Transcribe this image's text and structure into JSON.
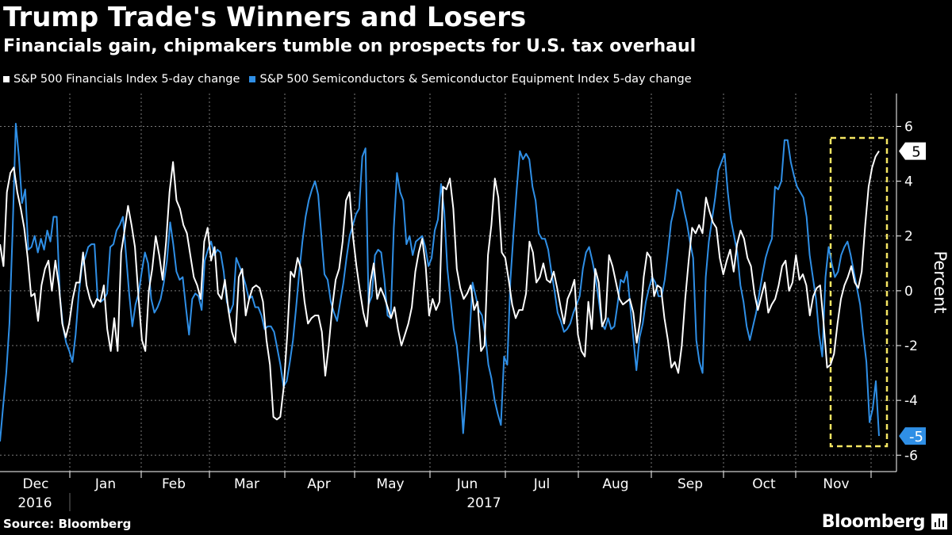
{
  "chart_data": {
    "type": "line",
    "title": "Trump Trade's Winners and Losers",
    "subtitle": "Financials gain, chipmakers tumble on prospects for U.S. tax overhaul",
    "ylabel": "Percent",
    "ylim": [
      -6.6,
      7.2
    ],
    "yticks": [
      -6,
      -4,
      -2,
      0,
      2,
      4,
      6
    ],
    "grid": true,
    "legend_position": "top-left",
    "x_month_labels": [
      "Dec",
      "Jan",
      "Feb",
      "Mar",
      "Apr",
      "May",
      "Jun",
      "Jul",
      "Aug",
      "Sep",
      "Oct",
      "Nov"
    ],
    "x_year_labels": [
      "2016",
      "2017"
    ],
    "series": [
      {
        "name": "S&P 500 Financials Index 5-day change",
        "color": "#ffffff",
        "end_label": "5",
        "values": [
          1.7,
          0.9,
          3.6,
          4.3,
          4.5,
          3.6,
          3.0,
          2.3,
          1.2,
          -0.2,
          -0.1,
          -1.1,
          0.2,
          0.8,
          1.1,
          0.0,
          1.1,
          0.2,
          -1.2,
          -1.7,
          -1.2,
          -0.3,
          0.3,
          0.3,
          1.4,
          0.2,
          -0.3,
          -0.6,
          -0.3,
          -0.4,
          0.2,
          -1.4,
          -2.2,
          -1.0,
          -2.2,
          1.4,
          2.2,
          3.1,
          2.4,
          1.6,
          -0.2,
          -1.8,
          -2.2,
          0.0,
          0.8,
          2.0,
          1.3,
          0.4,
          1.8,
          3.6,
          4.7,
          3.3,
          3.0,
          2.4,
          2.1,
          1.3,
          0.5,
          0.2,
          -0.3,
          1.8,
          2.3,
          1.1,
          1.6,
          -0.1,
          -0.3,
          0.4,
          -0.7,
          -1.5,
          -1.9,
          0.5,
          0.8,
          -0.9,
          -0.3,
          0.1,
          0.2,
          0.1,
          -0.4,
          -1.8,
          -2.7,
          -4.6,
          -4.7,
          -4.6,
          -3.5,
          -1.6,
          0.7,
          0.5,
          1.2,
          0.8,
          -0.4,
          -1.2,
          -1.0,
          -0.9,
          -0.9,
          -1.5,
          -3.1,
          -2.0,
          -0.6,
          0.4,
          0.8,
          1.8,
          3.3,
          3.6,
          2.0,
          0.9,
          0.0,
          -0.8,
          -1.3,
          0.3,
          1.0,
          -0.3,
          0.1,
          -0.2,
          -0.6,
          -1.0,
          -0.6,
          -1.4,
          -2.0,
          -1.6,
          -1.2,
          -0.6,
          0.7,
          1.4,
          1.9,
          0.9,
          -0.9,
          -0.3,
          -0.7,
          -0.4,
          3.8,
          3.7,
          4.1,
          3.0,
          0.8,
          0.1,
          -0.3,
          -0.1,
          0.2,
          -0.7,
          -0.4,
          -2.2,
          -2.0,
          1.3,
          2.4,
          4.1,
          3.4,
          1.4,
          1.2,
          0.4,
          -0.5,
          -1.0,
          -0.7,
          -0.7,
          -0.1,
          1.8,
          1.4,
          0.3,
          0.5,
          1.0,
          0.4,
          0.3,
          0.7,
          0.1,
          -0.6,
          -1.2,
          -0.3,
          0.0,
          0.4,
          -1.6,
          -2.2,
          -2.4,
          -0.4,
          -1.4,
          0.8,
          0.3,
          -1.3,
          -1.0,
          1.3,
          0.9,
          0.3,
          -0.3,
          -0.5,
          -0.4,
          -0.3,
          -0.8,
          -1.9,
          -1.1,
          0.5,
          1.4,
          1.2,
          -0.2,
          0.2,
          0.1,
          -1.0,
          -1.8,
          -2.8,
          -2.6,
          -3.0,
          -2.0,
          -0.3,
          1.1,
          2.3,
          2.1,
          2.4,
          2.1,
          3.4,
          2.9,
          2.5,
          2.3,
          1.2,
          0.6,
          1.1,
          1.5,
          0.7,
          1.7,
          2.2,
          1.9,
          1.2,
          0.9,
          -0.1,
          -0.7,
          -0.2,
          0.3,
          -0.8,
          -0.5,
          -0.3,
          0.2,
          0.9,
          1.1,
          0.0,
          0.3,
          1.3,
          0.4,
          0.6,
          0.2,
          -0.9,
          -0.2,
          0.1,
          0.2,
          -1.2,
          -2.8,
          -2.7,
          -2.3,
          -1.2,
          -0.3,
          0.2,
          0.5,
          0.9,
          0.3,
          0.1,
          0.7,
          2.4,
          3.8,
          4.5,
          4.9,
          5.1
        ]
      },
      {
        "name": "S&P 500 Semiconductors & Semiconductor Equipment Index 5-day change",
        "color": "#2f8fe6",
        "end_label": "-5",
        "values": [
          -5.5,
          -4.2,
          -3.0,
          -1.2,
          2.2,
          6.1,
          4.9,
          3.2,
          3.7,
          1.5,
          1.6,
          2.0,
          1.4,
          1.9,
          1.5,
          2.2,
          1.8,
          2.7,
          2.7,
          -0.2,
          -1.3,
          -1.9,
          -2.2,
          -2.6,
          -1.6,
          -0.1,
          0.9,
          1.2,
          1.6,
          1.7,
          1.7,
          -0.3,
          -0.4,
          -0.3,
          -0.1,
          1.6,
          1.7,
          2.2,
          2.4,
          2.7,
          1.3,
          -0.1,
          -1.3,
          -0.5,
          -0.1,
          0.7,
          1.4,
          1.0,
          -0.3,
          -0.8,
          -0.6,
          -0.3,
          0.3,
          1.1,
          2.5,
          1.7,
          0.7,
          0.4,
          0.5,
          -0.6,
          -1.6,
          -0.3,
          -0.1,
          -0.2,
          -0.7,
          1.1,
          1.5,
          1.8,
          1.3,
          1.5,
          1.4,
          0.7,
          -0.4,
          -0.8,
          -0.5,
          1.2,
          0.9,
          0.6,
          0.2,
          -0.3,
          -0.2,
          -0.6,
          -0.6,
          -0.9,
          -1.4,
          -1.3,
          -1.3,
          -1.5,
          -2.1,
          -2.7,
          -3.5,
          -3.3,
          -2.6,
          -1.8,
          -0.6,
          0.7,
          1.8,
          2.7,
          3.3,
          3.7,
          4.0,
          3.5,
          2.0,
          0.6,
          0.4,
          -0.4,
          -0.8,
          -1.1,
          -0.4,
          0.3,
          1.2,
          2.0,
          2.4,
          2.8,
          3.0,
          4.9,
          5.2,
          -0.5,
          -0.2,
          1.3,
          1.5,
          1.4,
          0.4,
          -0.9,
          -1.0,
          2.3,
          4.3,
          3.6,
          3.3,
          1.7,
          2.0,
          1.3,
          1.8,
          1.9,
          2.0,
          1.6,
          0.9,
          1.2,
          2.2,
          2.6,
          3.9,
          2.9,
          0.8,
          -0.3,
          -1.4,
          -2.0,
          -3.1,
          -5.2,
          -3.6,
          -1.7,
          0.3,
          -0.2,
          -0.7,
          -0.9,
          -1.6,
          -2.7,
          -3.2,
          -4.0,
          -4.5,
          -4.9,
          -2.4,
          -2.7,
          0.4,
          2.1,
          3.7,
          5.1,
          4.8,
          5.0,
          4.8,
          3.8,
          3.3,
          2.1,
          1.9,
          1.9,
          1.5,
          0.7,
          0.0,
          -0.8,
          -1.1,
          -1.5,
          -1.4,
          -1.2,
          -0.8,
          -0.5,
          -0.2,
          0.8,
          1.4,
          1.6,
          1.1,
          0.5,
          -0.3,
          -1.2,
          -1.4,
          -1.0,
          -1.4,
          -1.3,
          -0.5,
          0.4,
          0.3,
          0.7,
          -0.5,
          -1.7,
          -2.9,
          -1.7,
          -1.2,
          -0.4,
          0.1,
          0.5,
          0.3,
          -0.2,
          -0.2,
          0.4,
          1.4,
          2.5,
          3.0,
          3.7,
          3.6,
          3.0,
          2.5,
          1.8,
          1.2,
          -1.8,
          -2.6,
          -3.0,
          0.5,
          1.8,
          2.6,
          3.4,
          4.4,
          4.7,
          5.0,
          3.6,
          2.6,
          2.0,
          1.4,
          0.2,
          -0.4,
          -1.3,
          -1.8,
          -1.3,
          -0.8,
          -0.1,
          0.6,
          1.2,
          1.6,
          1.9,
          3.8,
          3.7,
          4.0,
          5.5,
          5.5,
          4.7,
          4.2,
          3.8,
          3.6,
          3.4,
          2.7,
          1.3,
          0.5,
          -0.3,
          -1.6,
          -2.4,
          0.5,
          1.6,
          1.0,
          0.5,
          0.7,
          1.3,
          1.6,
          1.8,
          1.3,
          0.7,
          0.1,
          -0.5,
          -1.6,
          -2.6,
          -4.8,
          -4.3,
          -3.3,
          -5.3
        ]
      }
    ]
  },
  "footer": {
    "source": "Source:  Bloomberg",
    "brand": "Bloomberg"
  },
  "colors": {
    "background": "#000000",
    "grid": "#7a7a7a",
    "highlight_box": "#f5e663"
  }
}
